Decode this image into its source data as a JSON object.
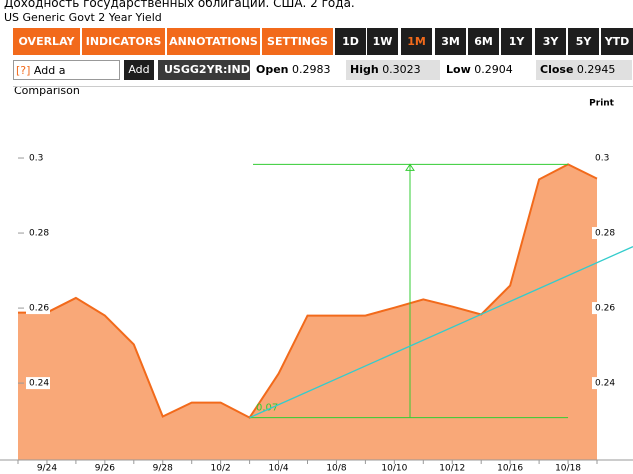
{
  "header": {
    "title": "Доходность государственных облигаций. США. 2 года.",
    "subtitle": "US Generic Govt 2 Year Yield"
  },
  "toolbar": {
    "menus": [
      "OVERLAY ▼",
      "INDICATORS ▼",
      "ANNOTATIONS ▼",
      "SETTINGS ▼"
    ],
    "active_period": 2,
    "periods": [
      "1D",
      "1W",
      "1M",
      "3M",
      "6M",
      "1Y",
      "3Y",
      "5Y",
      "YTD"
    ]
  },
  "quote_bar": {
    "help": "[?]",
    "comparison": "Add a Comparison",
    "add": "Add",
    "ticker": "USGG2YR:IND",
    "open_label": "Open",
    "open": 0.2983,
    "high_label": "High",
    "high": 0.3023,
    "low_label": "Low",
    "low": 0.2904,
    "close_label": "Close",
    "close": 0.2945
  },
  "print": "Print",
  "chart_data": {
    "type": "area",
    "categories": [
      null,
      "9/24",
      null,
      "9/26",
      null,
      "9/28",
      null,
      "10/2",
      null,
      "10/4",
      null,
      "10/8",
      null,
      "10/10",
      null,
      "10/12",
      null,
      "10/16",
      null,
      "10/18",
      null
    ],
    "values": [
      0.2588,
      0.2588,
      0.2627,
      0.258,
      0.2503,
      0.2311,
      0.2348,
      0.2348,
      0.2308,
      0.2425,
      0.258,
      0.258,
      0.258,
      0.2601,
      0.2623,
      0.2604,
      0.2583,
      0.266,
      0.2943,
      0.2983,
      0.2945
    ],
    "color": "#f26a1b",
    "fill": "#f9a878",
    "ylim": [
      0.2195,
      0.3168
    ],
    "yticks": [
      0.24,
      0.26,
      0.28,
      0.3
    ],
    "annotation": "0.07",
    "annotation_color": "#33cc33",
    "trend_color": "#33cccc"
  }
}
